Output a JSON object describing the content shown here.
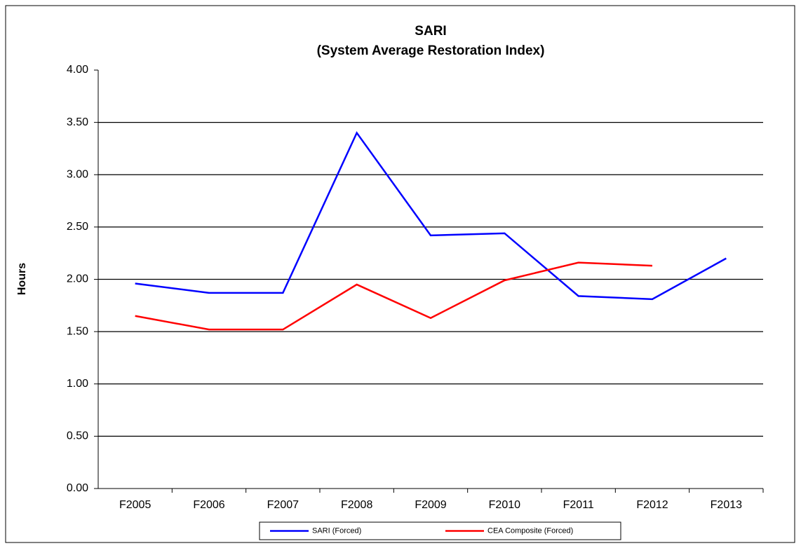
{
  "chart_data": {
    "type": "line",
    "title": "SARI",
    "subtitle": "(System Average Restoration Index)",
    "y_label": "Hours",
    "categories": [
      "F2005",
      "F2006",
      "F2007",
      "F2008",
      "F2009",
      "F2010",
      "F2011",
      "F2012",
      "F2013"
    ],
    "series": [
      {
        "name": "SARI (Forced)",
        "color": "#0000ff",
        "values": [
          1.96,
          1.87,
          1.87,
          3.4,
          2.42,
          2.44,
          1.84,
          1.81,
          2.2
        ]
      },
      {
        "name": "CEA Composite (Forced)",
        "color": "#ff0000",
        "values": [
          1.65,
          1.52,
          1.52,
          1.95,
          1.63,
          1.99,
          2.16,
          2.13,
          null
        ]
      }
    ],
    "ylim": [
      0,
      4
    ],
    "yticks": [
      {
        "value": 0,
        "label": "0.00"
      },
      {
        "value": 0.5,
        "label": "0.50"
      },
      {
        "value": 1,
        "label": "1.00"
      },
      {
        "value": 1.5,
        "label": "1.50"
      },
      {
        "value": 2,
        "label": "2.00"
      },
      {
        "value": 2.5,
        "label": "2.50"
      },
      {
        "value": 3,
        "label": "3.00"
      },
      {
        "value": 3.5,
        "label": "3.50"
      },
      {
        "value": 4,
        "label": "4.00"
      }
    ],
    "grid": true,
    "legend": "bottom"
  }
}
